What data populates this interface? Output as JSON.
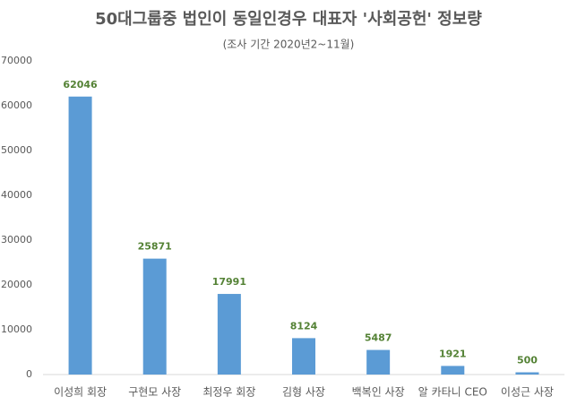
{
  "chart_data": {
    "type": "bar",
    "title": "50대그룹중 법인이 동일인경우 대표자 '사회공헌' 정보량",
    "subtitle": "(조사 기간 2020년2~11월)",
    "categories": [
      "이성희 회장",
      "구현모 사장",
      "최정우 회장",
      "김형 사장",
      "백복인 사장",
      "알 카타니 CEO",
      "이성근 사장"
    ],
    "values": [
      62046,
      25871,
      17991,
      8124,
      5487,
      1921,
      500
    ],
    "color": "#5b9bd5",
    "label_color": "#548235",
    "ylim": [
      0,
      70000
    ],
    "yticks": [
      0,
      10000,
      20000,
      30000,
      40000,
      50000,
      60000,
      70000
    ],
    "grid": false
  }
}
